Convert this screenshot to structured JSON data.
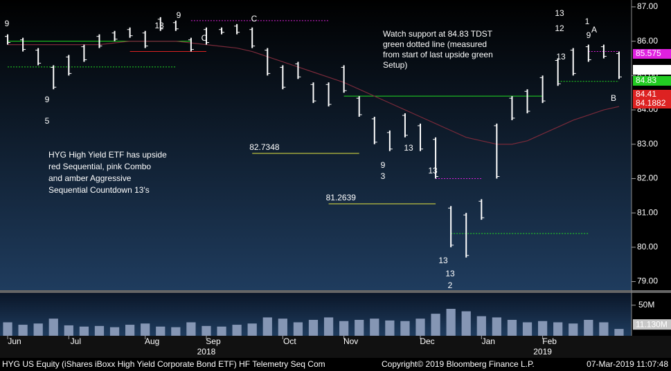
{
  "chart_data": {
    "type": "hilo",
    "categories": [
      "Jun",
      null,
      null,
      null,
      "Jul",
      null,
      null,
      null,
      null,
      "Aug",
      null,
      null,
      null,
      "Sep",
      null,
      null,
      null,
      null,
      "Oct",
      null,
      null,
      null,
      "Nov",
      null,
      null,
      null,
      null,
      "Dec",
      null,
      null,
      null,
      "Jan",
      null,
      null,
      null,
      "Feb",
      null,
      null,
      null,
      null,
      null
    ],
    "years": [
      {
        "label": "2018",
        "at": "Sep"
      },
      {
        "label": "2019",
        "at": "Feb"
      }
    ],
    "high": [
      86.2,
      86.1,
      85.8,
      85.3,
      85.6,
      85.9,
      86.2,
      86.3,
      86.4,
      86.3,
      86.7,
      86.6,
      86.1,
      86.4,
      86.4,
      86.5,
      86.4,
      85.8,
      85.3,
      85.4,
      84.8,
      84.8,
      85.3,
      84.4,
      83.8,
      83.4,
      83.9,
      83.6,
      83.2,
      81.2,
      81.0,
      81.4,
      83.6,
      84.4,
      84.6,
      85.0,
      85.5,
      85.8,
      85.9,
      85.9,
      85.7
    ],
    "low": [
      85.9,
      85.7,
      85.3,
      84.6,
      85.0,
      85.4,
      85.8,
      86.0,
      86.1,
      85.8,
      86.3,
      86.3,
      85.7,
      85.9,
      86.2,
      86.2,
      85.8,
      85.0,
      84.6,
      84.9,
      84.2,
      84.1,
      84.5,
      83.8,
      83.0,
      82.8,
      83.2,
      82.8,
      82.0,
      80.0,
      79.7,
      80.8,
      82.0,
      83.7,
      83.9,
      84.2,
      84.7,
      85.0,
      85.4,
      85.5,
      84.9
    ],
    "moving_average": [
      85.9,
      85.9,
      85.9,
      85.9,
      85.9,
      85.9,
      85.9,
      85.95,
      86.0,
      86.0,
      86.0,
      86.0,
      85.95,
      85.9,
      85.85,
      85.8,
      85.7,
      85.55,
      85.4,
      85.25,
      85.1,
      84.95,
      84.8,
      84.6,
      84.4,
      84.2,
      84.0,
      83.8,
      83.6,
      83.4,
      83.2,
      83.1,
      83.0,
      83.0,
      83.1,
      83.3,
      83.5,
      83.7,
      83.85,
      84.0,
      84.1
    ],
    "price_color": "#ffffff",
    "ma_color": "#7a2a3a",
    "ylim": [
      78.75,
      87.2
    ],
    "yticks": [
      {
        "value": 79,
        "label": "79.00"
      },
      {
        "value": 80,
        "label": "80.00"
      },
      {
        "value": 81,
        "label": "81.00"
      },
      {
        "value": 82,
        "label": "82.00"
      },
      {
        "value": 83,
        "label": "83.00"
      },
      {
        "value": 84,
        "label": "84.00"
      },
      {
        "value": 85,
        "label": "85.00"
      },
      {
        "value": 86,
        "label": "86.00"
      },
      {
        "value": 87,
        "label": "87.00"
      }
    ],
    "volume": [
      22,
      18,
      20,
      28,
      17,
      15,
      16,
      14,
      18,
      20,
      15,
      14,
      22,
      16,
      15,
      18,
      20,
      30,
      28,
      22,
      26,
      30,
      24,
      26,
      28,
      25,
      24,
      28,
      36,
      44,
      40,
      32,
      30,
      26,
      22,
      24,
      22,
      20,
      26,
      22,
      11.13
    ],
    "volume_color": "#8596b4",
    "vlim": [
      0,
      70
    ],
    "vticks": [
      {
        "value": 50,
        "label": "50M"
      }
    ],
    "last_volume": {
      "value": 11.13,
      "label": "11.130M"
    },
    "levels": [
      {
        "value": 86.0,
        "color": "#22dd22",
        "style": "solid"
      },
      {
        "value": 85.25,
        "color": "#22dd22",
        "style": "dotted"
      },
      {
        "value": 85.7,
        "color": "#dd2222",
        "style": "solid"
      },
      {
        "value": 86.6,
        "color": "#e020e0",
        "style": "dotted"
      },
      {
        "value": 84.4,
        "color": "#22dd22",
        "style": "solid"
      },
      {
        "value": 82.0,
        "color": "#e020e0",
        "style": "dotted"
      },
      {
        "value": 80.4,
        "color": "#22dd22",
        "style": "dotted"
      },
      {
        "value": 84.83,
        "color": "#22dd22",
        "style": "dotted"
      },
      {
        "value": 85.7,
        "color": "#e020e0",
        "style": "dotted"
      },
      {
        "value": 82.7348,
        "color": "#e8e840",
        "style": "solid",
        "label": "82.7348"
      },
      {
        "value": 81.2639,
        "color": "#e8e840",
        "style": "solid",
        "label": "81.2639"
      }
    ],
    "price_tags": [
      {
        "value": 85.575,
        "label": "85.575",
        "bg": "#e020e0",
        "fg": "#ffffff"
      },
      {
        "value": 85.14,
        "label": "85.14",
        "bg": "#ffffff",
        "fg": "#000000"
      },
      {
        "value": 84.83,
        "label": "84.83",
        "bg": "#22cc22",
        "fg": "#000000"
      },
      {
        "value": 84.41,
        "label": "84.41",
        "bg": "#dd2222",
        "fg": "#ffffff"
      },
      {
        "value": 84.1882,
        "label": "84.1882",
        "bg": "#dd2222",
        "fg": "#ffffff"
      }
    ],
    "annotations": [
      "Watch support at 84.83 TDST",
      "green dotted line (measured",
      "from start of last upside green",
      "Setup)"
    ],
    "annotations_left": [
      "HYG High Yield ETF has upside",
      "red Sequential,  pink Combo",
      "and amber Aggressive",
      "Sequential Countdown 13's"
    ],
    "setup_labels": [
      {
        "text": "13",
        "color": "#e020e0"
      },
      {
        "text": "13",
        "color": "#e020e0"
      },
      {
        "text": "13",
        "color": "#e0c090"
      },
      {
        "text": "13",
        "color": "#e0c090"
      },
      {
        "text": "13",
        "color": "#dd2222"
      },
      {
        "text": "13",
        "color": "#e0c090"
      },
      {
        "text": "13",
        "color": "#e0c090"
      },
      {
        "text": "9",
        "color": "#22dd22"
      },
      {
        "text": "9",
        "color": "#22dd22"
      },
      {
        "text": "9",
        "color": "#22dd22"
      },
      {
        "text": "9",
        "color": "#22dd22"
      },
      {
        "text": "9",
        "color": "#22dd22"
      },
      {
        "text": "12",
        "color": "#dd2222"
      },
      {
        "text": "1",
        "color": "#dd2222"
      },
      {
        "text": "A",
        "color": "#e8e840"
      },
      {
        "text": "B",
        "color": "#e8e840"
      },
      {
        "text": "C",
        "color": "#e8e840"
      },
      {
        "text": "C",
        "color": "#40c0e0"
      },
      {
        "text": "2",
        "color": "#40c0e0"
      },
      {
        "text": "5",
        "color": "#e8e840"
      },
      {
        "text": "3",
        "color": "#e8e840"
      }
    ],
    "footer_left": "HYG US Equity (iShares iBoxx High Yield Corporate Bond ETF) HF Telemetry Seq Com",
    "footer_center": "Copyright© 2019 Bloomberg Finance L.P.",
    "footer_right": "07-Mar-2019 11:07:48"
  }
}
